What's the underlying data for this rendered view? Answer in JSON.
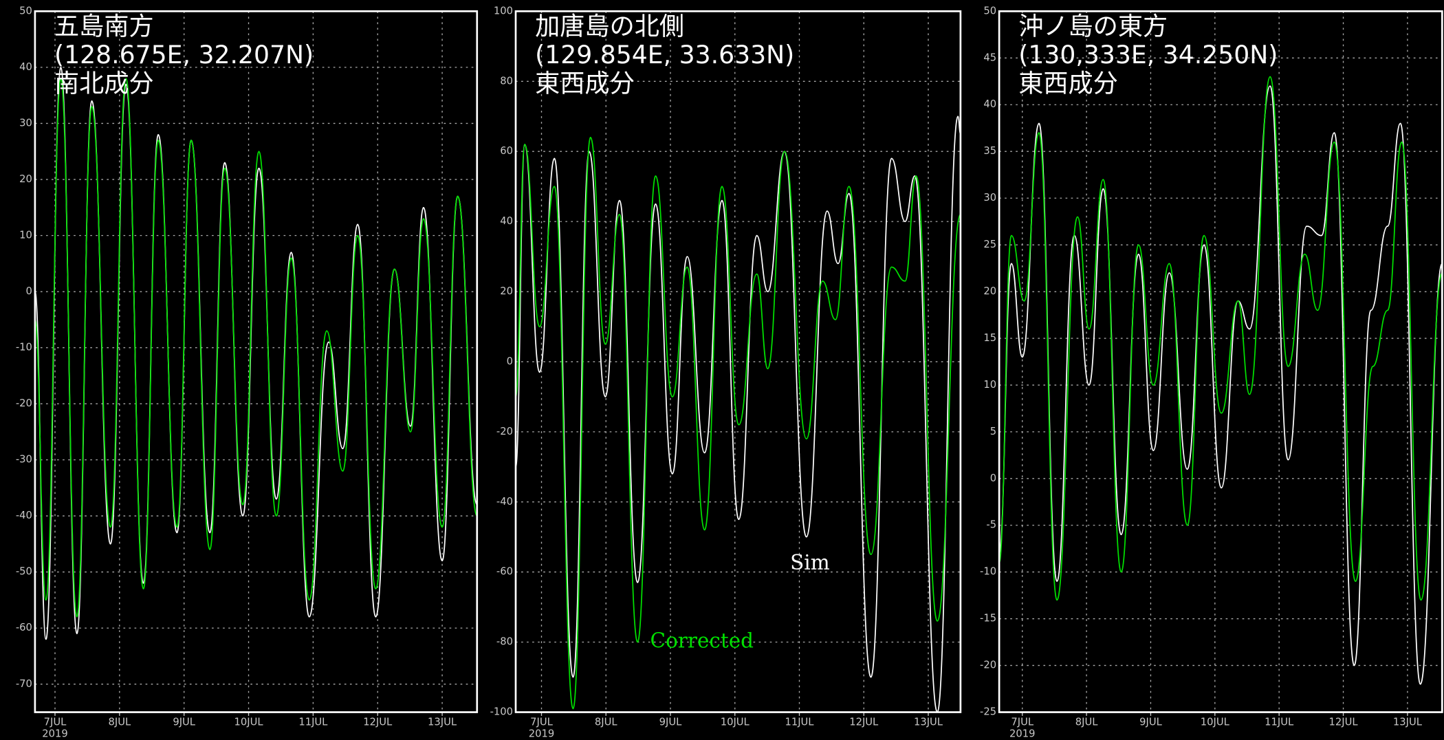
{
  "chart_data": [
    {
      "type": "line",
      "title": "五島南方",
      "subtitle": "(128.675E, 32.207N)",
      "component": "南北成分",
      "xlim": [
        6.69,
        13.54
      ],
      "ylim": [
        -75,
        50
      ],
      "xticks": [
        {
          "value": 7,
          "label": "7JUL"
        },
        {
          "value": 8,
          "label": "8JUL"
        },
        {
          "value": 9,
          "label": "9JUL"
        },
        {
          "value": 10,
          "label": "10JUL"
        },
        {
          "value": 11,
          "label": "11JUL"
        },
        {
          "value": 12,
          "label": "12JUL"
        },
        {
          "value": 13,
          "label": "13JUL"
        }
      ],
      "year": "2019",
      "yticks": [
        -70,
        -60,
        -50,
        -40,
        -30,
        -20,
        -10,
        0,
        10,
        20,
        30,
        40,
        50
      ],
      "grid": true,
      "series": [
        {
          "color": "#ffffff",
          "x": [
            6.69,
            6.86,
            7.09,
            7.34,
            7.57,
            7.86,
            8.1,
            8.37,
            8.6,
            8.89,
            9.11,
            9.4,
            9.63,
            9.91,
            10.16,
            10.43,
            10.66,
            10.94,
            11.24,
            11.46,
            11.69,
            11.97,
            12.26,
            12.51,
            12.71,
            13.0,
            13.24,
            13.54
          ],
          "values": [
            0,
            -62,
            40,
            -61,
            34,
            -45,
            37,
            -52,
            28,
            -43,
            27,
            -43,
            23,
            -40,
            22,
            -37,
            7,
            -58,
            -9,
            -28,
            12,
            -58,
            4,
            -24,
            15,
            -48,
            17,
            -38
          ]
        },
        {
          "color": "#00e000",
          "x": [
            6.69,
            6.86,
            7.09,
            7.34,
            7.57,
            7.86,
            8.1,
            8.37,
            8.6,
            8.89,
            9.11,
            9.4,
            9.63,
            9.91,
            10.16,
            10.43,
            10.66,
            10.94,
            11.21,
            11.46,
            11.69,
            11.97,
            12.26,
            12.51,
            12.71,
            13.0,
            13.24,
            13.54
          ],
          "values": [
            -5,
            -55,
            38,
            -58,
            33,
            -42,
            38,
            -53,
            27,
            -42,
            27,
            -46,
            22,
            -38,
            25,
            -40,
            6,
            -55,
            -7,
            -32,
            10,
            -53,
            4,
            -25,
            13,
            -42,
            17,
            -40
          ]
        }
      ]
    },
    {
      "type": "line",
      "title": "加唐島の北側",
      "subtitle": "(129.854E, 33.633N)",
      "component": "東西成分",
      "xlim": [
        6.6,
        13.5
      ],
      "ylim": [
        -100,
        100
      ],
      "xticks": [
        {
          "value": 7,
          "label": "7JUL"
        },
        {
          "value": 8,
          "label": "8JUL"
        },
        {
          "value": 9,
          "label": "9JUL"
        },
        {
          "value": 10,
          "label": "10JUL"
        },
        {
          "value": 11,
          "label": "11JUL"
        },
        {
          "value": 12,
          "label": "12JUL"
        },
        {
          "value": 13,
          "label": "13JUL"
        }
      ],
      "year": "2019",
      "yticks": [
        -100,
        -80,
        -60,
        -40,
        -20,
        0,
        20,
        40,
        60,
        80,
        100
      ],
      "grid": true,
      "series": [
        {
          "name": "Sim",
          "color": "#ffffff",
          "x": [
            6.6,
            6.74,
            6.97,
            7.2,
            7.49,
            7.74,
            7.99,
            8.21,
            8.49,
            8.77,
            9.03,
            9.26,
            9.53,
            9.8,
            10.06,
            10.34,
            10.51,
            10.77,
            11.11,
            11.43,
            11.6,
            11.77,
            12.11,
            12.43,
            12.64,
            12.79,
            13.14,
            13.46,
            13.5
          ],
          "values": [
            -30,
            62,
            -3,
            58,
            -90,
            60,
            -10,
            46,
            -63,
            45,
            -32,
            30,
            -26,
            46,
            -45,
            36,
            20,
            60,
            -50,
            43,
            28,
            48,
            -90,
            58,
            40,
            53,
            -100,
            70,
            65
          ]
        },
        {
          "name": "Corrected",
          "color": "#00e000",
          "x": [
            6.6,
            6.74,
            6.97,
            7.2,
            7.49,
            7.76,
            7.99,
            8.21,
            8.49,
            8.77,
            9.03,
            9.26,
            9.53,
            9.8,
            10.06,
            10.34,
            10.51,
            10.77,
            11.11,
            11.36,
            11.56,
            11.77,
            12.11,
            12.43,
            12.64,
            12.81,
            13.14,
            13.5
          ],
          "values": [
            -10,
            62,
            10,
            50,
            -99,
            64,
            5,
            42,
            -80,
            53,
            -10,
            27,
            -48,
            50,
            -18,
            25,
            -2,
            60,
            -22,
            23,
            12,
            50,
            -55,
            27,
            23,
            53,
            -74,
            42
          ]
        }
      ]
    },
    {
      "type": "line",
      "title": "沖ノ島の東方",
      "subtitle": "(130,333E, 34.250N)",
      "component": "東西成分",
      "xlim": [
        6.64,
        13.54
      ],
      "ylim": [
        -25,
        50
      ],
      "xticks": [
        {
          "value": 7,
          "label": "7JUL"
        },
        {
          "value": 8,
          "label": "8JUL"
        },
        {
          "value": 9,
          "label": "9JUL"
        },
        {
          "value": 10,
          "label": "10JUL"
        },
        {
          "value": 11,
          "label": "11JUL"
        },
        {
          "value": 12,
          "label": "12JUL"
        },
        {
          "value": 13,
          "label": "13JUL"
        }
      ],
      "year": "2019",
      "yticks": [
        -25,
        -20,
        -15,
        -10,
        -5,
        0,
        5,
        10,
        15,
        20,
        25,
        30,
        35,
        40,
        45,
        50
      ],
      "grid": true,
      "series": [
        {
          "color": "#ffffff",
          "x": [
            6.64,
            6.83,
            7.0,
            7.26,
            7.54,
            7.81,
            8.04,
            8.26,
            8.54,
            8.81,
            9.04,
            9.29,
            9.57,
            9.83,
            10.1,
            10.36,
            10.54,
            10.86,
            11.14,
            11.43,
            11.66,
            11.86,
            12.17,
            12.43,
            12.69,
            12.89,
            13.2,
            13.54
          ],
          "values": [
            -8,
            23,
            13,
            38,
            -11,
            26,
            10,
            31,
            -6,
            24,
            3,
            22,
            1,
            25,
            -1,
            19,
            16,
            42,
            2,
            27,
            26,
            37,
            -20,
            18,
            27,
            38,
            -22,
            23
          ]
        },
        {
          "color": "#00e000",
          "x": [
            6.64,
            6.83,
            7.03,
            7.26,
            7.54,
            7.86,
            8.04,
            8.26,
            8.54,
            8.81,
            9.04,
            9.29,
            9.57,
            9.83,
            10.1,
            10.36,
            10.54,
            10.86,
            11.14,
            11.4,
            11.6,
            11.86,
            12.19,
            12.46,
            12.69,
            12.91,
            13.21,
            13.54
          ],
          "values": [
            -9,
            26,
            19,
            37,
            -13,
            28,
            16,
            32,
            -10,
            25,
            10,
            23,
            -5,
            26,
            7,
            19,
            9,
            43,
            12,
            24,
            18,
            36,
            -11,
            12,
            18,
            36,
            -13,
            22
          ]
        }
      ]
    }
  ]
}
